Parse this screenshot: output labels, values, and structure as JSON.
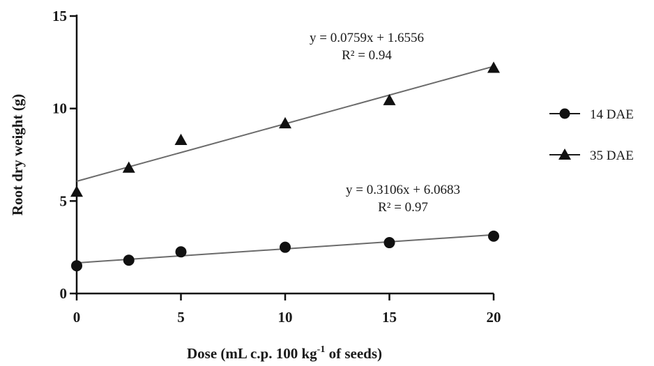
{
  "chart_data": {
    "type": "scatter",
    "xlabel_main": "Dose (mL c.p. 100 kg",
    "xlabel_sup": "-1",
    "xlabel_tail": " of seeds)",
    "ylabel": "Root dry weight (g)",
    "xlim": [
      0,
      20
    ],
    "ylim": [
      0,
      15
    ],
    "x_ticks": [
      "0",
      "5",
      "10",
      "15",
      "20"
    ],
    "y_ticks": [
      "0",
      "5",
      "10",
      "15"
    ],
    "grid": false,
    "legend_position": "right",
    "series": [
      {
        "name": "14 DAE",
        "marker": "circle",
        "x": [
          0,
          2.5,
          5,
          10,
          15,
          20
        ],
        "y": [
          1.5,
          1.8,
          2.25,
          2.5,
          2.75,
          3.1
        ],
        "fit": {
          "slope": 0.0759,
          "intercept": 1.6556
        }
      },
      {
        "name": "35 DAE",
        "marker": "triangle",
        "x": [
          0,
          2.5,
          5,
          10,
          15,
          20
        ],
        "y": [
          5.5,
          6.8,
          8.3,
          9.2,
          10.45,
          12.2
        ],
        "fit": {
          "slope": 0.3106,
          "intercept": 6.0683
        }
      }
    ],
    "annotations": [
      {
        "line1": "y = 0.0759x + 1.6556",
        "line2": "R² = 0.94"
      },
      {
        "line1": "y = 0.3106x + 6.0683",
        "line2": "R² = 0.97"
      }
    ],
    "colors": {
      "marker": "#111111",
      "fit_line": "#6b6b6b",
      "axis": "#111111"
    }
  }
}
